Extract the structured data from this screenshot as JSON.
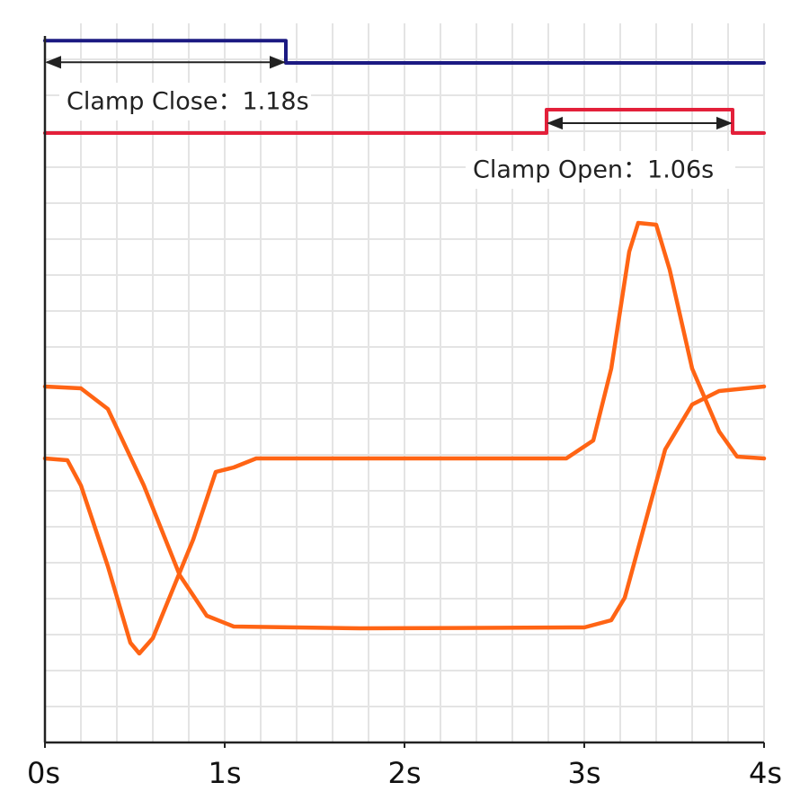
{
  "chart_data": {
    "type": "line",
    "xlim": [
      0,
      4
    ],
    "ylim": [
      0,
      100
    ],
    "xticks": [
      {
        "value": 0,
        "label": "0s"
      },
      {
        "value": 1,
        "label": "1s"
      },
      {
        "value": 2,
        "label": "2s"
      },
      {
        "value": 3,
        "label": "3s"
      },
      {
        "value": 4,
        "label": "4s"
      }
    ],
    "grid": true,
    "xgrid": [
      0.2,
      0.4,
      0.6,
      0.8,
      1,
      1.2,
      1.4,
      1.6,
      1.8,
      2,
      2.2,
      2.4,
      2.6,
      2.8,
      3,
      3.2,
      3.4,
      3.6,
      3.8,
      4
    ],
    "ygrid": [
      5,
      10,
      15,
      20,
      25,
      30,
      35,
      40,
      45,
      50,
      55,
      60,
      65,
      70,
      75,
      80,
      85,
      90,
      95
    ],
    "series": [
      {
        "color": "#1c1a82",
        "x": [
          0,
          1.34,
          1.34,
          4
        ],
        "values": [
          97.6,
          97.6,
          94.5,
          94.5
        ]
      },
      {
        "color": "#e3203a",
        "x": [
          0,
          2.79,
          2.79,
          3.825,
          3.825,
          4
        ],
        "values": [
          84.75,
          84.75,
          88,
          88,
          84.75,
          84.75
        ]
      },
      {
        "color": "#ff6414",
        "x": [
          0,
          0.2,
          0.35,
          0.55,
          0.75,
          0.9,
          1.05,
          1.75,
          3.0,
          3.15,
          3.225,
          3.45,
          3.6,
          3.75,
          4
        ],
        "values": [
          49.5,
          49.25,
          46.375,
          35.75,
          23.25,
          17.625,
          16.125,
          15.875,
          16,
          17,
          20.125,
          40.75,
          47,
          48.875,
          49.5
        ]
      },
      {
        "color": "#ff6414",
        "x": [
          0,
          0.125,
          0.2,
          0.35,
          0.475,
          0.525,
          0.6,
          0.825,
          0.95,
          1.05,
          1.175,
          2.9,
          3.05,
          3.15,
          3.25,
          3.3,
          3.4,
          3.475,
          3.6,
          3.75,
          3.85,
          4
        ],
        "values": [
          39.5,
          39.25,
          35.75,
          24.5,
          13.875,
          12.375,
          14.5,
          28.25,
          37.625,
          38.25,
          39.5,
          39.5,
          42,
          52,
          68.25,
          72.25,
          72,
          65.75,
          52,
          43.25,
          39.75,
          39.5
        ]
      }
    ],
    "annotations": [
      "Clamp Close：1.18s",
      "Clamp Open：1.06s"
    ]
  }
}
